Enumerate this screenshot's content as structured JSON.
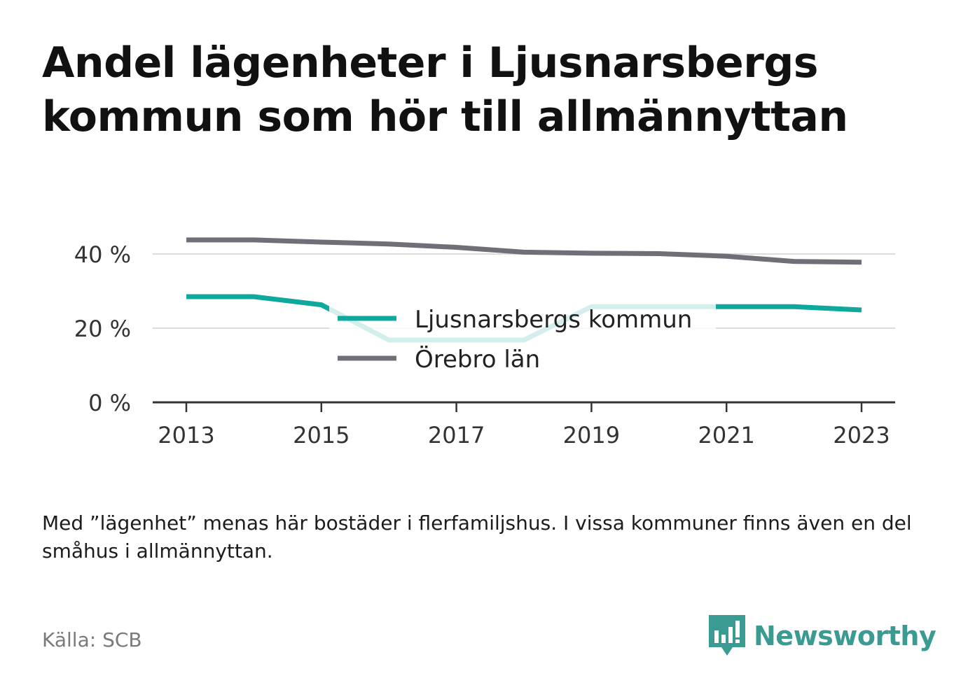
{
  "title": "Andel lägenheter i Ljusnarsbergs kommun som hör till allmännyttan",
  "note": "Med ”lägenhet” menas här bostäder i flerfamiljshus. I vissa kommuner finns även en del småhus i allmännyttan.",
  "source": "Källa: SCB",
  "brand": {
    "name": "Newsworthy",
    "logo_icon": "bar-chart-speech-bubble-icon",
    "color": "#3a9b92"
  },
  "chart_data": {
    "type": "line",
    "title": "Andel lägenheter i Ljusnarsbergs kommun som hör till allmännyttan",
    "xlabel": "",
    "ylabel": "",
    "x": [
      2013,
      2014,
      2015,
      2016,
      2017,
      2018,
      2019,
      2020,
      2021,
      2022,
      2023
    ],
    "x_ticks": [
      "2013",
      "2015",
      "2017",
      "2019",
      "2021",
      "2023"
    ],
    "y_ticks": [
      "0 %",
      "20 %",
      "40 %"
    ],
    "y_tick_values": [
      0,
      20,
      40
    ],
    "ylim": [
      0,
      50
    ],
    "grid": true,
    "legend_position": "center",
    "series": [
      {
        "name": "Ljusnarsbergs kommun",
        "color": "#0ea89c",
        "values": [
          28.5,
          28.5,
          26.3,
          16.8,
          16.8,
          16.8,
          25.8,
          25.8,
          25.8,
          25.8,
          24.9
        ]
      },
      {
        "name": "Örebro län",
        "color": "#6f6f78",
        "values": [
          43.8,
          43.8,
          43.2,
          42.7,
          41.8,
          40.5,
          40.2,
          40.1,
          39.4,
          38.0,
          37.8
        ]
      }
    ]
  }
}
